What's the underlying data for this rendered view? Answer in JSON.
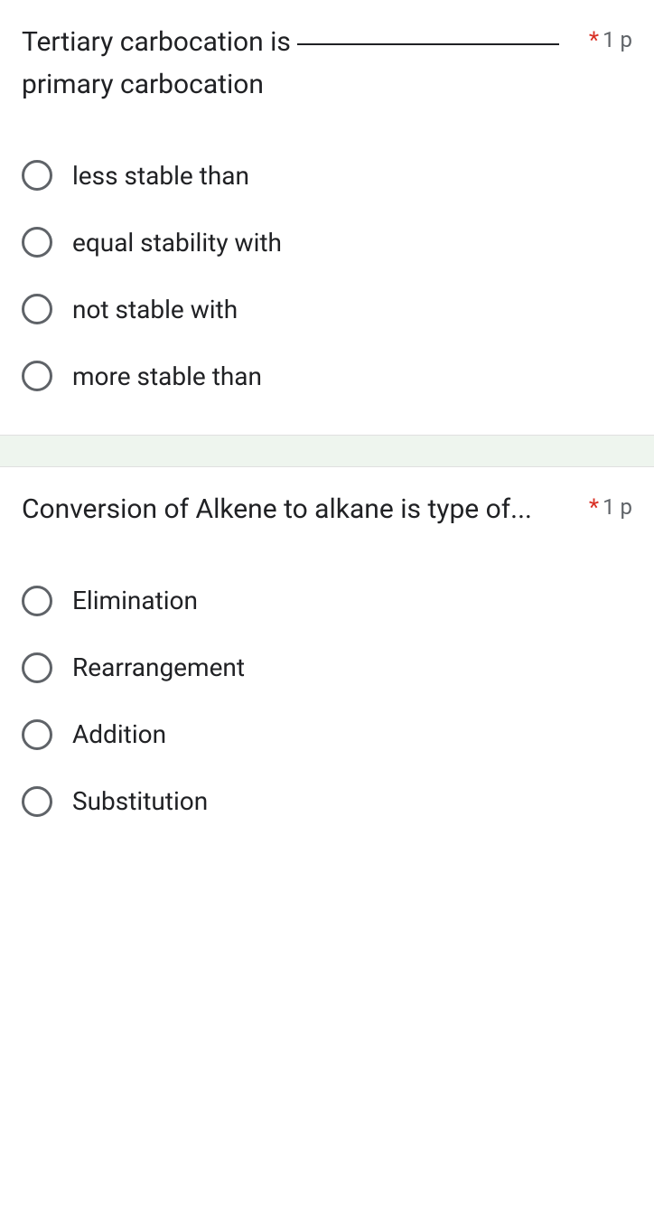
{
  "questions": [
    {
      "title_pre": "Tertiary carbocation is ",
      "title_post": " primary carbocation",
      "has_blank": true,
      "points": "1 p",
      "options": [
        {
          "label": "less stable than"
        },
        {
          "label": "equal stability with"
        },
        {
          "label": "not stable with"
        },
        {
          "label": "more stable than"
        }
      ]
    },
    {
      "title": "Conversion of Alkene to alkane is type of...",
      "has_blank": false,
      "points": "1 p",
      "options": [
        {
          "label": "Elimination"
        },
        {
          "label": "Rearrangement"
        },
        {
          "label": "Addition"
        },
        {
          "label": "Substitution"
        }
      ]
    }
  ],
  "colors": {
    "required": "#d93025",
    "text": "#202124",
    "muted": "#5f6368",
    "separator": "#eef5ee"
  }
}
